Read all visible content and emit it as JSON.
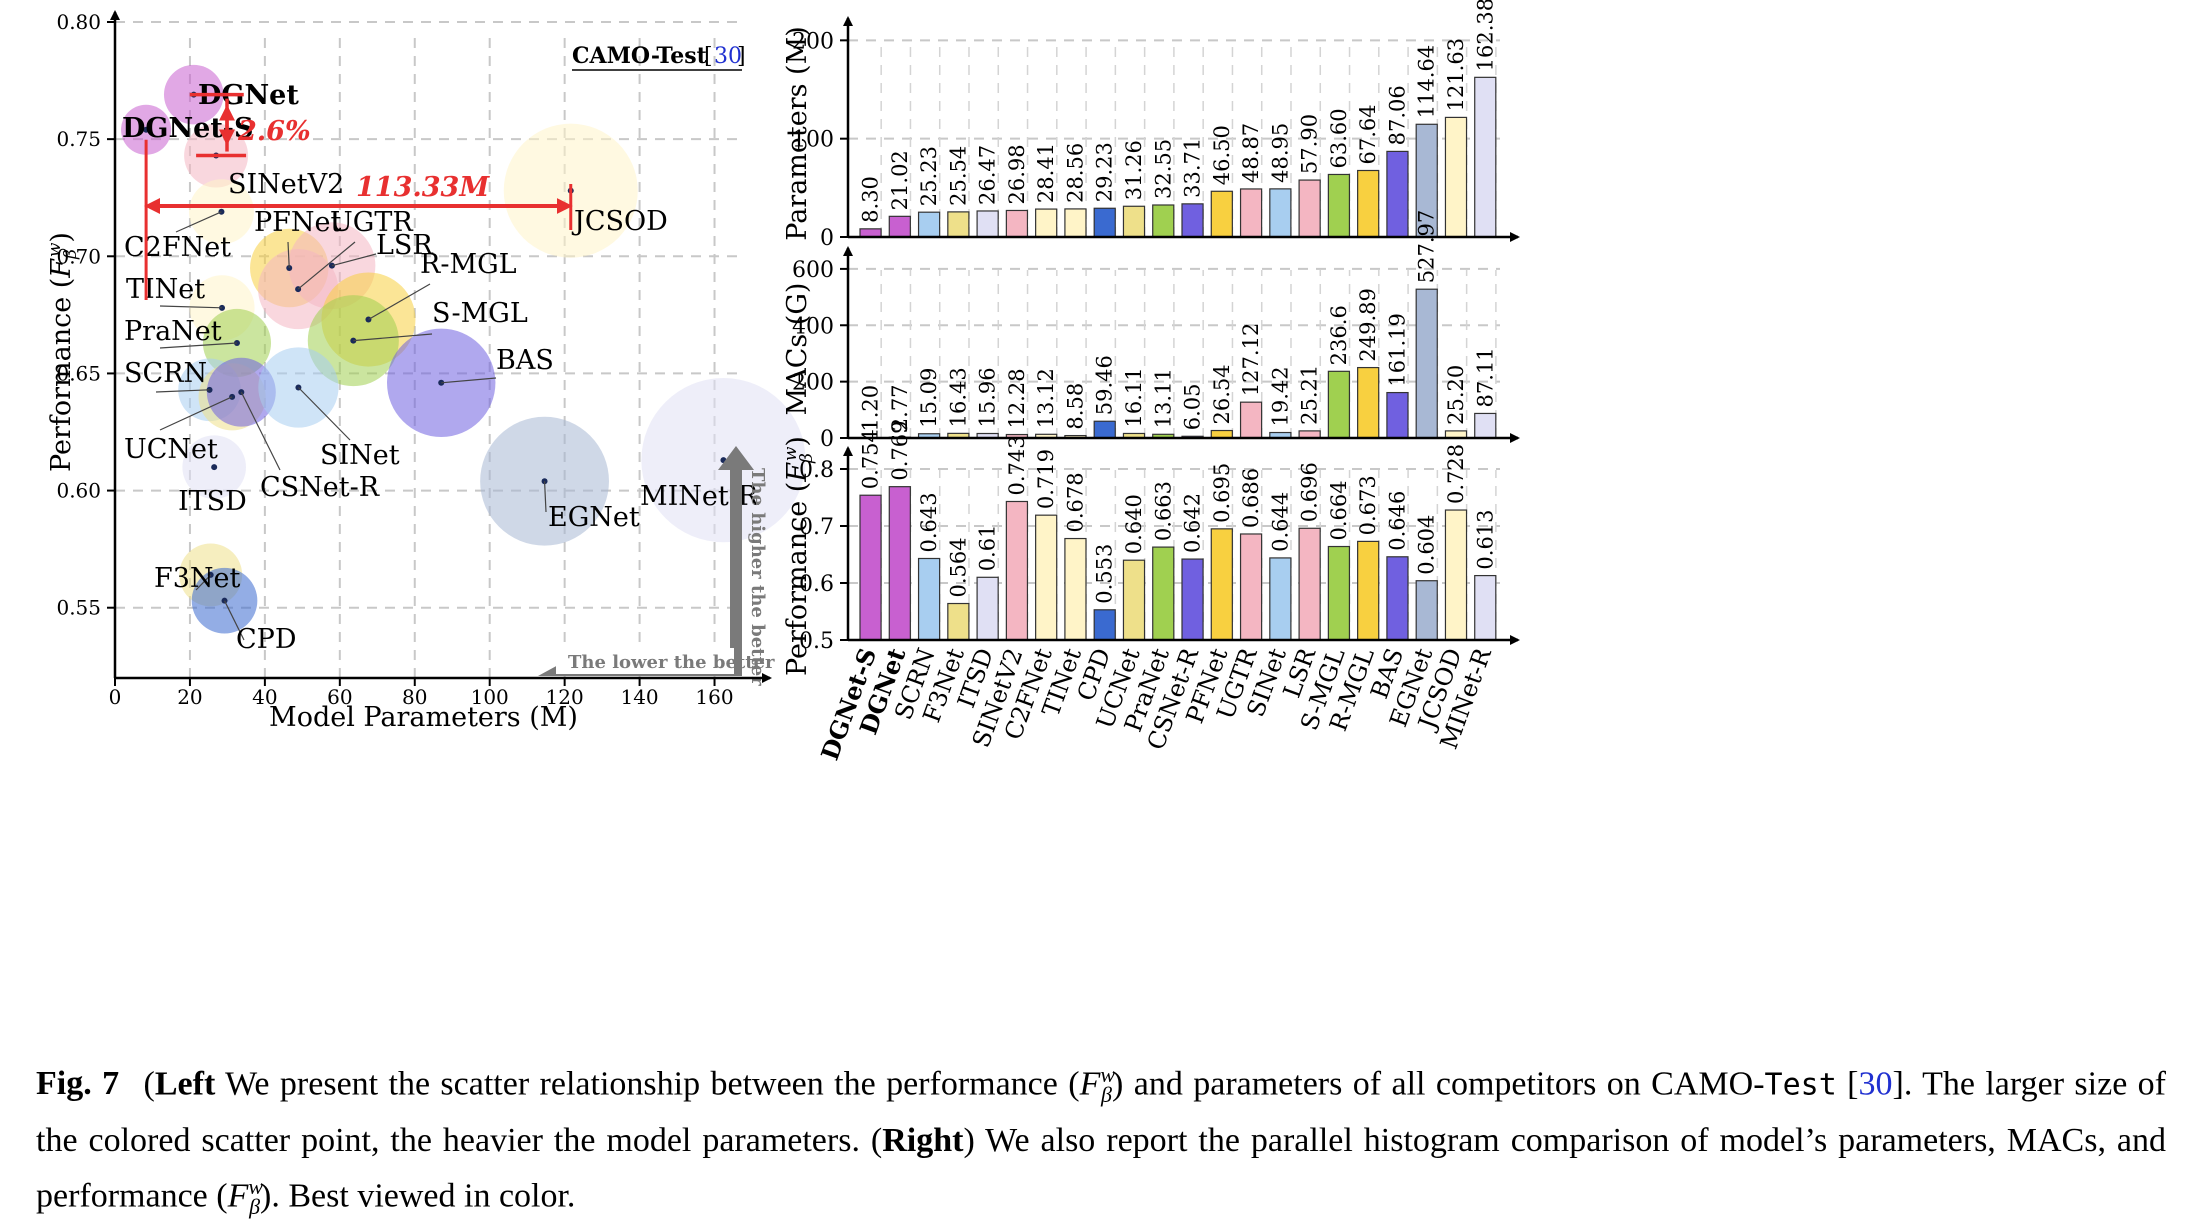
{
  "caption": {
    "fig_label": "Fig. 7",
    "left_word": "Left",
    "part1": " We present the scatter relationship between the performance (",
    "metric": "F",
    "metric_sup": "w",
    "metric_sub": "β",
    "part2": ") and parameters of all competitors on CAMO-",
    "test_word": "Test",
    "ref_open": " [",
    "ref_num": "30",
    "part3": "]. The larger size of the colored scatter point, the heavier the model parameters. (",
    "right_word": "Right",
    "part4": ") We also report the parallel histogram comparison of model’s parameters, MACs, and performance (",
    "part5": "). Best viewed in color."
  },
  "chart_data": [
    {
      "type": "scatter",
      "legend_title": "CAMO-Test",
      "legend_ref": "30",
      "xlabel": "Model Parameters (M)",
      "ylabel": "Performance (F_β^w)",
      "xlim": [
        0,
        170
      ],
      "ylim": [
        0.52,
        0.8
      ],
      "xticks": [
        "0",
        "20",
        "40",
        "60",
        "80",
        "100",
        "120",
        "140",
        "160"
      ],
      "yticks": [
        "0.55",
        "0.60",
        "0.65",
        "0.70",
        "0.75",
        "0.80"
      ],
      "grid": true,
      "points": [
        {
          "name": "DGNet-S",
          "x": 8.3,
          "y": 0.754,
          "color": "#c860d0",
          "bold": true
        },
        {
          "name": "DGNet",
          "x": 21.02,
          "y": 0.769,
          "color": "#c860d0",
          "bold": true
        },
        {
          "name": "SINetV2",
          "x": 26.98,
          "y": 0.743,
          "color": "#f4b6c2"
        },
        {
          "name": "C2FNet",
          "x": 28.41,
          "y": 0.719,
          "color": "#fff4c8"
        },
        {
          "name": "PFNet",
          "x": 46.5,
          "y": 0.695,
          "color": "#f8d040"
        },
        {
          "name": "UGTR",
          "x": 48.87,
          "y": 0.686,
          "color": "#f4b6c2"
        },
        {
          "name": "LSR",
          "x": 57.9,
          "y": 0.696,
          "color": "#f4b6c2"
        },
        {
          "name": "R-MGL",
          "x": 67.64,
          "y": 0.673,
          "color": "#f8d040"
        },
        {
          "name": "S-MGL",
          "x": 63.6,
          "y": 0.664,
          "color": "#a0d050"
        },
        {
          "name": "TINet",
          "x": 28.56,
          "y": 0.678,
          "color": "#fff4c8"
        },
        {
          "name": "PraNet",
          "x": 32.55,
          "y": 0.663,
          "color": "#a0d050"
        },
        {
          "name": "SCRN",
          "x": 25.23,
          "y": 0.643,
          "color": "#a8cef0"
        },
        {
          "name": "UCNet",
          "x": 31.26,
          "y": 0.64,
          "color": "#eee08a"
        },
        {
          "name": "CSNet-R",
          "x": 33.71,
          "y": 0.642,
          "color": "#7060e0"
        },
        {
          "name": "SINet",
          "x": 48.95,
          "y": 0.644,
          "color": "#a8cef0"
        },
        {
          "name": "BAS",
          "x": 87.06,
          "y": 0.646,
          "color": "#7060e0"
        },
        {
          "name": "ITSD",
          "x": 26.47,
          "y": 0.61,
          "color": "#e0e0f4"
        },
        {
          "name": "EGNet",
          "x": 114.64,
          "y": 0.604,
          "color": "#a8b8d4"
        },
        {
          "name": "MINet-R",
          "x": 162.38,
          "y": 0.613,
          "color": "#e0e0f4"
        },
        {
          "name": "JCSOD",
          "x": 121.63,
          "y": 0.728,
          "color": "#fff4c8"
        },
        {
          "name": "F3Net",
          "x": 25.54,
          "y": 0.564,
          "color": "#eee08a"
        },
        {
          "name": "CPD",
          "x": 29.23,
          "y": 0.553,
          "color": "#3a6ad0"
        }
      ],
      "annotations": {
        "perf_gain": "2.6%",
        "param_gap": "113.33M",
        "higher_better": "The higher the better",
        "lower_better": "The lower the better"
      }
    },
    {
      "type": "bar",
      "ylabel": "Parameters (M)",
      "ylim": [
        0,
        200
      ],
      "yticks": [
        "0",
        "100",
        "200"
      ],
      "categories": [
        "DGNet-S",
        "DGNet",
        "SCRN",
        "F3Net",
        "ITSD",
        "SINetV2",
        "C2FNet",
        "TINet",
        "CPD",
        "UCNet",
        "PraNet",
        "CSNet-R",
        "PFNet",
        "UGTR",
        "SINet",
        "LSR",
        "S-MGL",
        "R-MGL",
        "BAS",
        "EGNet",
        "JCSOD",
        "MINet-R"
      ],
      "values": [
        8.3,
        21.02,
        25.23,
        25.54,
        26.47,
        26.98,
        28.41,
        28.56,
        29.23,
        31.26,
        32.55,
        33.71,
        46.5,
        48.87,
        48.95,
        57.9,
        63.6,
        67.64,
        87.06,
        114.64,
        121.63,
        162.38
      ],
      "labels": [
        "8.30",
        "21.02",
        "25.23",
        "25.54",
        "26.47",
        "26.98",
        "28.41",
        "28.56",
        "29.23",
        "31.26",
        "32.55",
        "33.71",
        "46.50",
        "48.87",
        "48.95",
        "57.90",
        "63.60",
        "67.64",
        "87.06",
        "114.64",
        "121.63",
        "162.38"
      ]
    },
    {
      "type": "bar",
      "ylabel": "MACs (G)",
      "ylim": [
        0,
        600
      ],
      "yticks": [
        "0",
        "200",
        "400",
        "600"
      ],
      "values": [
        1.2,
        2.77,
        15.09,
        16.43,
        15.96,
        12.28,
        13.12,
        8.58,
        59.46,
        16.11,
        13.11,
        6.05,
        26.54,
        127.12,
        19.42,
        25.21,
        236.6,
        249.89,
        161.19,
        527.97,
        25.2,
        87.11
      ],
      "labels": [
        "1.20",
        "2.77",
        "15.09",
        "16.43",
        "15.96",
        "12.28",
        "13.12",
        "8.58",
        "59.46",
        "16.11",
        "13.11",
        "6.05",
        "26.54",
        "127.12",
        "19.42",
        "25.21",
        "236.6",
        "249.89",
        "161.19",
        "527.97",
        "25.20",
        "87.11"
      ]
    },
    {
      "type": "bar",
      "ylabel": "Performance (F_β^w)",
      "ylim": [
        0.5,
        0.8
      ],
      "yticks": [
        "0.5",
        "0.6",
        "0.7",
        "0.8"
      ],
      "values": [
        0.754,
        0.769,
        0.643,
        0.564,
        0.61,
        0.743,
        0.719,
        0.678,
        0.553,
        0.64,
        0.663,
        0.642,
        0.695,
        0.686,
        0.644,
        0.696,
        0.664,
        0.673,
        0.646,
        0.604,
        0.728,
        0.613
      ],
      "labels": [
        "0.754",
        "0.769",
        "0.643",
        "0.564",
        "0.61",
        "0.743",
        "0.719",
        "0.678",
        "0.553",
        "0.640",
        "0.663",
        "0.642",
        "0.695",
        "0.686",
        "0.644",
        "0.696",
        "0.664",
        "0.673",
        "0.646",
        "0.604",
        "0.728",
        "0.613"
      ]
    }
  ],
  "bar_colors": [
    "#c860d0",
    "#c860d0",
    "#a8cef0",
    "#eee08a",
    "#e0e0f4",
    "#f4b6c2",
    "#fff4c8",
    "#fff4c8",
    "#3a6ad0",
    "#eee08a",
    "#a0d050",
    "#7060e0",
    "#f8d040",
    "#f4b6c2",
    "#a8cef0",
    "#f4b6c2",
    "#a0d050",
    "#f8d040",
    "#7060e0",
    "#a8b8d4",
    "#fff4c8",
    "#e0e0f4"
  ]
}
